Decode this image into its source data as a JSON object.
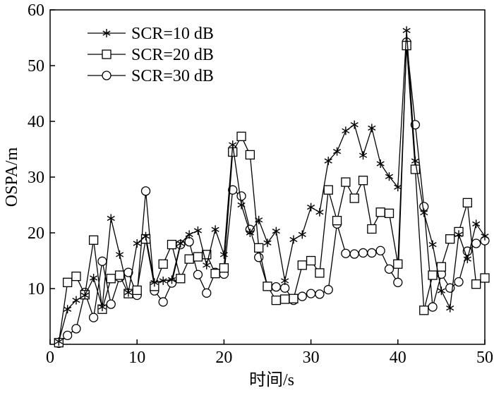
{
  "chart_data": {
    "type": "line",
    "xlabel": "时间/s",
    "ylabel": "OSPA/m",
    "xlim": [
      0,
      50
    ],
    "ylim": [
      0,
      60
    ],
    "xticks": [
      0,
      10,
      20,
      30,
      40,
      50
    ],
    "yticks": [
      10,
      20,
      30,
      40,
      50,
      60
    ],
    "grid": false,
    "legend_position": "top-left",
    "x": [
      1,
      2,
      3,
      4,
      5,
      6,
      7,
      8,
      9,
      10,
      11,
      12,
      13,
      14,
      15,
      16,
      17,
      18,
      19,
      20,
      21,
      22,
      23,
      24,
      25,
      26,
      27,
      28,
      29,
      30,
      31,
      32,
      33,
      34,
      35,
      36,
      37,
      38,
      39,
      40,
      41,
      42,
      43,
      44,
      45,
      46,
      47,
      48,
      49,
      50
    ],
    "series": [
      {
        "name": "SCR=10 dB",
        "marker": "star",
        "values": [
          0.5,
          6.3,
          7.9,
          8.8,
          11.9,
          6.7,
          22.6,
          16.1,
          9.3,
          18.1,
          19.4,
          11.1,
          11.4,
          11.6,
          18.1,
          19.7,
          20.4,
          14.2,
          20.6,
          16.1,
          35.8,
          25.0,
          20.0,
          22.3,
          18.2,
          20.3,
          11.4,
          18.8,
          19.7,
          24.6,
          23.7,
          32.9,
          34.6,
          38.3,
          39.4,
          33.9,
          38.8,
          32.4,
          30.1,
          28.2,
          56.3,
          32.9,
          23.6,
          17.9,
          9.6,
          6.5,
          19.7,
          15.3,
          21.6,
          19.4
        ]
      },
      {
        "name": "SCR=20 dB",
        "marker": "square",
        "values": [
          0.3,
          11.1,
          12.2,
          8.9,
          18.7,
          6.3,
          11.8,
          12.4,
          9.1,
          9.7,
          18.9,
          10.4,
          14.4,
          17.9,
          11.8,
          15.3,
          15.7,
          16.1,
          12.7,
          13.7,
          34.5,
          37.3,
          34.0,
          17.3,
          10.4,
          7.9,
          8.1,
          8.2,
          14.2,
          15.0,
          12.8,
          27.7,
          22.2,
          29.1,
          26.2,
          29.4,
          20.7,
          23.7,
          23.5,
          14.4,
          53.6,
          31.4,
          6.1,
          12.4,
          13.9,
          18.9,
          20.2,
          25.4,
          10.8,
          11.9
        ]
      },
      {
        "name": "SCR=30 dB",
        "marker": "circle",
        "values": [
          0.2,
          1.6,
          2.8,
          9.3,
          4.8,
          14.9,
          7.2,
          12.0,
          12.9,
          8.8,
          27.5,
          9.6,
          7.6,
          11.0,
          17.9,
          18.4,
          12.5,
          9.2,
          12.9,
          12.6,
          27.7,
          26.6,
          20.6,
          15.6,
          10.4,
          10.3,
          10.1,
          7.9,
          8.6,
          9.1,
          9.0,
          9.8,
          21.6,
          16.3,
          16.2,
          16.4,
          16.4,
          16.8,
          13.5,
          11.1,
          54.2,
          39.4,
          24.7,
          6.7,
          12.6,
          10.1,
          11.2,
          16.7,
          18.1,
          18.6
        ]
      }
    ]
  }
}
